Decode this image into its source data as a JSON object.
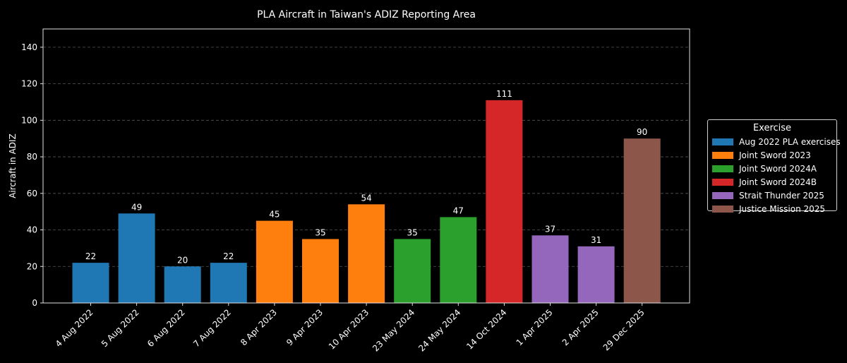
{
  "chart_data": {
    "type": "bar",
    "title": "PLA Aircraft in Taiwan's ADIZ Reporting Area",
    "xlabel": "",
    "ylabel": "Aircraft in ADIZ",
    "ylim": [
      0,
      150
    ],
    "yticks": [
      0,
      20,
      40,
      60,
      80,
      100,
      120,
      140
    ],
    "grid": "horizontal dashed",
    "legend_title": "Exercise",
    "legend_placement": "right, outside plot",
    "series": [
      {
        "name": "Aug 2022 PLA exercises",
        "color": "#1f77b4"
      },
      {
        "name": "Joint Sword 2023",
        "color": "#ff7f0e"
      },
      {
        "name": "Joint Sword 2024A",
        "color": "#2ca02c"
      },
      {
        "name": "Joint Sword 2024B",
        "color": "#d62728"
      },
      {
        "name": "Strait Thunder 2025",
        "color": "#9467bd"
      },
      {
        "name": "Justice Mission 2025",
        "color": "#8c564b"
      }
    ],
    "categories": [
      "4 Aug 2022",
      "5 Aug 2022",
      "6 Aug 2022",
      "7 Aug 2022",
      "8 Apr 2023",
      "9 Apr 2023",
      "10 Apr 2023",
      "23 May 2024",
      "24 May 2024",
      "14 Oct 2024",
      "1 Apr 2025",
      "2 Apr 2025",
      "29 Dec 2025"
    ],
    "values": [
      22,
      49,
      20,
      22,
      45,
      35,
      54,
      35,
      47,
      111,
      37,
      31,
      90
    ],
    "bar_series": [
      0,
      0,
      0,
      0,
      1,
      1,
      1,
      2,
      2,
      3,
      4,
      4,
      5
    ]
  }
}
